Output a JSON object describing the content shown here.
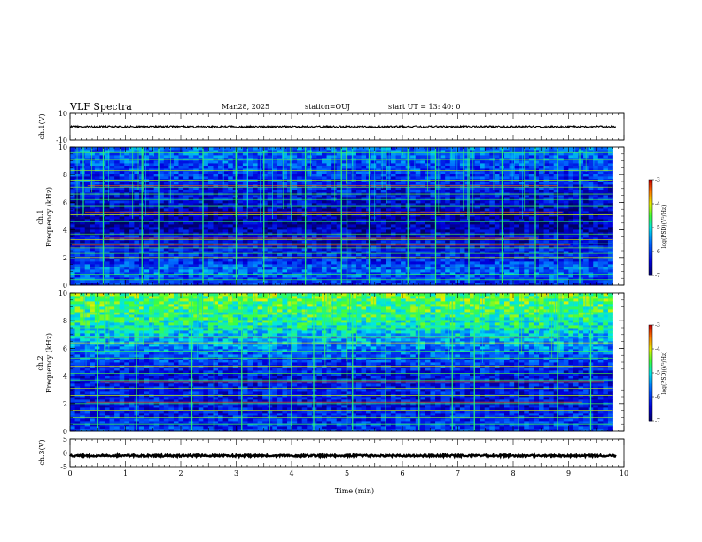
{
  "header": {
    "title": "VLF Spectra",
    "date": "Mar.28, 2025",
    "station": "station=OUJ",
    "start": "start UT =  13: 40: 0"
  },
  "chart_data": [
    {
      "type": "line",
      "name": "ch1-waveform",
      "ylabel": "ch.1(V)",
      "ylim": [
        -10,
        10
      ],
      "yticks": [
        "10",
        "-10"
      ],
      "mean": 0,
      "amplitude": 0.7,
      "xlim": [
        0,
        10
      ]
    },
    {
      "type": "heatmap",
      "name": "ch1-spectrogram",
      "ylabel_top": "ch.1",
      "ylabel": "Frequency (kHz)",
      "ylim": [
        0,
        10
      ],
      "yticks": [
        "0",
        "2",
        "4",
        "6",
        "8",
        "10"
      ],
      "xlim": [
        0,
        10
      ],
      "data_end_min": 9.8,
      "colorbar": {
        "label": "log(PSD)(V²/Hz)",
        "range": [
          -7,
          -3
        ],
        "ticks": [
          "-3",
          "-4",
          "-5",
          "-6",
          "-7"
        ]
      },
      "frequency_profile_logpsd": [
        {
          "f": 0.0,
          "v": -6.2
        },
        {
          "f": 0.5,
          "v": -5.9
        },
        {
          "f": 1.0,
          "v": -5.7
        },
        {
          "f": 1.5,
          "v": -5.9
        },
        {
          "f": 2.0,
          "v": -6.2
        },
        {
          "f": 2.5,
          "v": -6.1
        },
        {
          "f": 3.0,
          "v": -6.4
        },
        {
          "f": 3.5,
          "v": -6.3
        },
        {
          "f": 4.0,
          "v": -6.6
        },
        {
          "f": 5.0,
          "v": -6.7
        },
        {
          "f": 6.0,
          "v": -6.4
        },
        {
          "f": 7.0,
          "v": -6.2
        },
        {
          "f": 8.0,
          "v": -6.0
        },
        {
          "f": 9.0,
          "v": -5.8
        },
        {
          "f": 10.0,
          "v": -5.7
        }
      ],
      "spectral_lines_khz": [
        0.4,
        0.8,
        1.3,
        2.0,
        2.3,
        2.7,
        3.0,
        3.3,
        3.7,
        4.6,
        5.1,
        5.7,
        6.2,
        6.6,
        7.1,
        7.6,
        8.3,
        9.1,
        9.6
      ],
      "strong_lines_khz": [
        2.9,
        3.4,
        5.3,
        7.2
      ],
      "impulse_times_min": [
        0.6,
        1.3,
        1.6,
        2.4,
        3.0,
        3.5,
        4.25,
        4.9,
        5.0,
        5.4,
        6.1,
        6.6,
        7.2,
        7.8,
        8.4,
        8.8,
        9.2
      ]
    },
    {
      "type": "heatmap",
      "name": "ch2-spectrogram",
      "ylabel_top": "ch.2",
      "ylabel": "Frequency (kHz)",
      "ylim": [
        0,
        10
      ],
      "yticks": [
        "0",
        "2",
        "4",
        "6",
        "8",
        "10"
      ],
      "xlim": [
        0,
        10
      ],
      "data_end_min": 9.8,
      "colorbar": {
        "label": "log(PSD)(V²/Hz)",
        "range": [
          -7,
          -3
        ],
        "ticks": [
          "-3",
          "-4",
          "-5",
          "-6",
          "-7"
        ]
      },
      "frequency_profile_logpsd": [
        {
          "f": 0.0,
          "v": -6.0
        },
        {
          "f": 1.0,
          "v": -6.1
        },
        {
          "f": 2.0,
          "v": -6.3
        },
        {
          "f": 3.0,
          "v": -6.2
        },
        {
          "f": 4.0,
          "v": -6.3
        },
        {
          "f": 5.0,
          "v": -6.0
        },
        {
          "f": 6.0,
          "v": -5.6
        },
        {
          "f": 7.0,
          "v": -5.2
        },
        {
          "f": 8.0,
          "v": -4.8
        },
        {
          "f": 9.0,
          "v": -4.6
        },
        {
          "f": 10.0,
          "v": -4.4
        }
      ],
      "spectral_lines_khz": [
        0.5,
        1.0,
        1.5,
        2.0,
        2.6,
        3.1,
        3.7,
        4.2,
        4.7,
        5.3,
        5.8,
        6.4,
        6.9,
        7.5,
        8.0,
        8.6
      ],
      "strong_lines_khz": [
        2.1,
        3.6,
        6.8
      ],
      "impulse_times_min": [
        0.5,
        1.2,
        2.2,
        2.6,
        3.1,
        3.6,
        4.0,
        4.4,
        5.0,
        5.1,
        5.7,
        6.3,
        6.9,
        7.3,
        8.1,
        8.8,
        9.4
      ]
    },
    {
      "type": "line",
      "name": "ch3-waveform",
      "ylabel": "ch.3(V)",
      "ylim": [
        -5,
        5
      ],
      "yticks": [
        "5",
        "0",
        "-5"
      ],
      "mean": -1.0,
      "amplitude": 0.35,
      "xlim": [
        0,
        10
      ],
      "xlabel": "Time (min)",
      "xticks": [
        "0",
        "1",
        "2",
        "3",
        "4",
        "5",
        "6",
        "7",
        "8",
        "9",
        "10"
      ]
    }
  ]
}
